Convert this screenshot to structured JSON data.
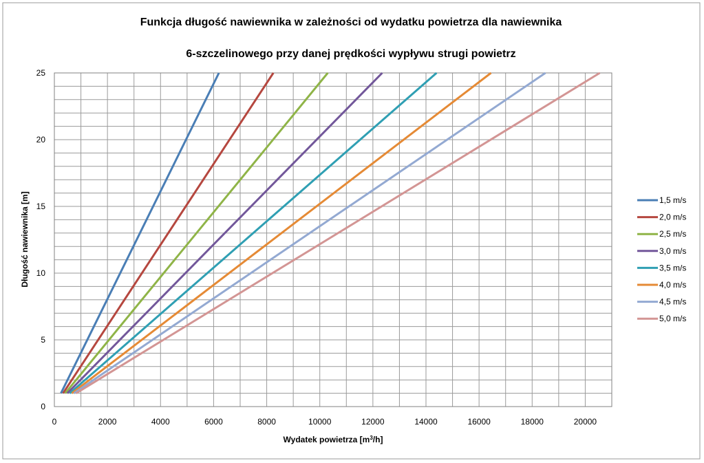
{
  "chart_data": {
    "type": "line",
    "title_line1": "Funkcja długość nawiewnika w zależności od wydatku powietrza dla nawiewnika",
    "title_line2": "6-szczelinowego przy danej prędkości wypływu strugi powietrz",
    "xlabel_main": "Wydatek powietrza [m",
    "xlabel_sup": "3",
    "xlabel_end": "/h]",
    "ylabel": "Długość nawiewnika [m]",
    "xlim": [
      0,
      21000
    ],
    "ylim": [
      0,
      25
    ],
    "x_ticks": [
      0,
      2000,
      4000,
      6000,
      8000,
      10000,
      12000,
      14000,
      16000,
      18000,
      20000
    ],
    "x_tick_labels": [
      "0",
      "2000",
      "4000",
      "6000",
      "8000",
      "10000",
      "12000",
      "14000",
      "16000",
      "18000",
      "20000"
    ],
    "y_ticks": [
      0,
      5,
      10,
      15,
      20,
      25
    ],
    "y_tick_labels": [
      "0",
      "5",
      "10",
      "15",
      "20",
      "25"
    ],
    "grid": true,
    "legend_position": "right",
    "series": [
      {
        "name": "1,5 m/s",
        "color": "#4a7eb5",
        "x": [
          250,
          6200
        ],
        "y": [
          1,
          25
        ]
      },
      {
        "name": "2,0 m/s",
        "color": "#b5473f",
        "x": [
          330,
          8250
        ],
        "y": [
          1,
          25
        ]
      },
      {
        "name": "2,5 m/s",
        "color": "#8fb447",
        "x": [
          410,
          10300
        ],
        "y": [
          1,
          25
        ]
      },
      {
        "name": "3,0 m/s",
        "color": "#72579a",
        "x": [
          490,
          12350
        ],
        "y": [
          1,
          25
        ]
      },
      {
        "name": "3,5 m/s",
        "color": "#2f9fb3",
        "x": [
          580,
          14400
        ],
        "y": [
          1,
          25
        ]
      },
      {
        "name": "4,0 m/s",
        "color": "#e58a35",
        "x": [
          660,
          16450
        ],
        "y": [
          1,
          25
        ]
      },
      {
        "name": "4,5 m/s",
        "color": "#93a9d2",
        "x": [
          740,
          18500
        ],
        "y": [
          1,
          25
        ]
      },
      {
        "name": "5,0 m/s",
        "color": "#d39594",
        "x": [
          820,
          20550
        ],
        "y": [
          1,
          25
        ]
      }
    ]
  }
}
